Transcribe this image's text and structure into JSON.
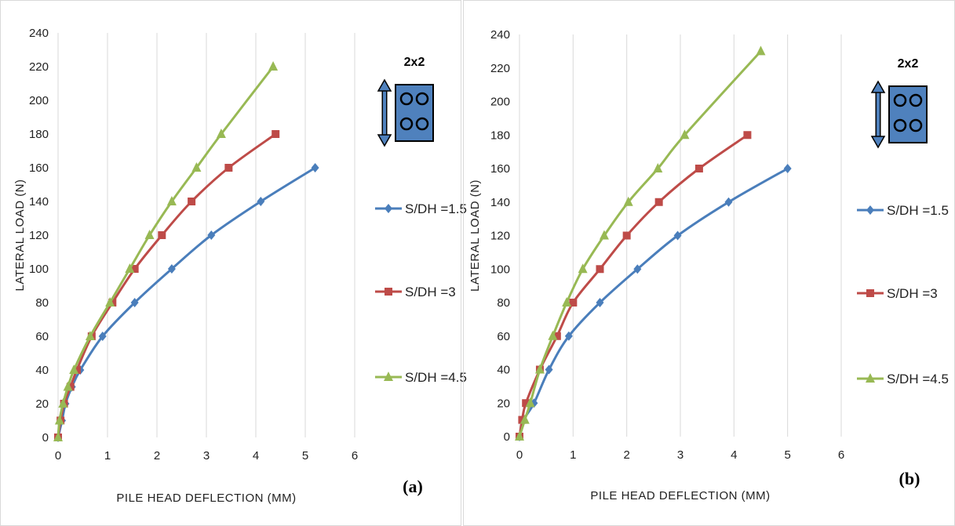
{
  "colors": {
    "s1": "#4a7ebb",
    "s2": "#be4b48",
    "s3": "#98b954",
    "grid": "#d9d9d9",
    "pile_cap": "#4f81bd"
  },
  "chart_data": [
    {
      "type": "line",
      "panel_label": "(a)",
      "group_label": "2x2",
      "xlabel": "PILE HEAD DEFLECTION (MM)",
      "ylabel": "LATERAL LOAD (N)",
      "xlim": [
        0,
        6
      ],
      "ylim": [
        0,
        240
      ],
      "xticks": [
        0,
        1,
        2,
        3,
        4,
        5,
        6
      ],
      "yticks": [
        0,
        20,
        40,
        60,
        80,
        100,
        120,
        140,
        160,
        180,
        200,
        220,
        240
      ],
      "grid": "vertical",
      "legend": "right",
      "series": [
        {
          "name": "S/DH =1.5",
          "marker": "diamond",
          "points": [
            [
              0,
              0
            ],
            [
              0.08,
              10
            ],
            [
              0.15,
              20
            ],
            [
              0.28,
              30
            ],
            [
              0.45,
              40
            ],
            [
              0.9,
              60
            ],
            [
              1.55,
              80
            ],
            [
              2.3,
              100
            ],
            [
              3.1,
              120
            ],
            [
              4.1,
              140
            ],
            [
              5.2,
              160
            ]
          ]
        },
        {
          "name": "S/DH =3",
          "marker": "square",
          "points": [
            [
              0,
              0
            ],
            [
              0.05,
              10
            ],
            [
              0.12,
              20
            ],
            [
              0.25,
              30
            ],
            [
              0.38,
              40
            ],
            [
              0.68,
              60
            ],
            [
              1.1,
              80
            ],
            [
              1.55,
              100
            ],
            [
              2.1,
              120
            ],
            [
              2.7,
              140
            ],
            [
              3.45,
              160
            ],
            [
              4.4,
              180
            ]
          ]
        },
        {
          "name": "S/DH =4.5",
          "marker": "triangle",
          "points": [
            [
              0,
              0
            ],
            [
              0.03,
              10
            ],
            [
              0.1,
              20
            ],
            [
              0.2,
              30
            ],
            [
              0.32,
              40
            ],
            [
              0.65,
              60
            ],
            [
              1.05,
              80
            ],
            [
              1.45,
              100
            ],
            [
              1.85,
              120
            ],
            [
              2.3,
              140
            ],
            [
              2.8,
              160
            ],
            [
              3.3,
              180
            ],
            [
              4.35,
              220
            ]
          ]
        }
      ]
    },
    {
      "type": "line",
      "panel_label": "(b)",
      "group_label": "2x2",
      "xlabel": "PILE HEAD DEFLECTION (MM)",
      "ylabel": "LATERAL LOAD (N)",
      "xlim": [
        0,
        6
      ],
      "ylim": [
        0,
        240
      ],
      "xticks": [
        0,
        1,
        2,
        3,
        4,
        5,
        6
      ],
      "yticks": [
        0,
        20,
        40,
        60,
        80,
        100,
        120,
        140,
        160,
        180,
        200,
        220,
        240
      ],
      "grid": "vertical",
      "legend": "right",
      "series": [
        {
          "name": "S/DH =1.5",
          "marker": "diamond",
          "points": [
            [
              0,
              0
            ],
            [
              0.08,
              10
            ],
            [
              0.27,
              20
            ],
            [
              0.55,
              40
            ],
            [
              0.92,
              60
            ],
            [
              1.5,
              80
            ],
            [
              2.2,
              100
            ],
            [
              2.95,
              120
            ],
            [
              3.9,
              140
            ],
            [
              5.0,
              160
            ]
          ]
        },
        {
          "name": "S/DH =3",
          "marker": "square",
          "points": [
            [
              0,
              0
            ],
            [
              0.05,
              10
            ],
            [
              0.12,
              20
            ],
            [
              0.38,
              40
            ],
            [
              0.7,
              60
            ],
            [
              1.0,
              80
            ],
            [
              1.5,
              100
            ],
            [
              2.0,
              120
            ],
            [
              2.6,
              140
            ],
            [
              3.35,
              160
            ],
            [
              4.25,
              180
            ]
          ]
        },
        {
          "name": "S/DH =4.5",
          "marker": "triangle",
          "points": [
            [
              0,
              0
            ],
            [
              0.1,
              10
            ],
            [
              0.2,
              20
            ],
            [
              0.38,
              40
            ],
            [
              0.62,
              60
            ],
            [
              0.88,
              80
            ],
            [
              1.18,
              100
            ],
            [
              1.58,
              120
            ],
            [
              2.03,
              140
            ],
            [
              2.58,
              160
            ],
            [
              3.08,
              180
            ],
            [
              4.5,
              230
            ]
          ]
        }
      ]
    }
  ]
}
